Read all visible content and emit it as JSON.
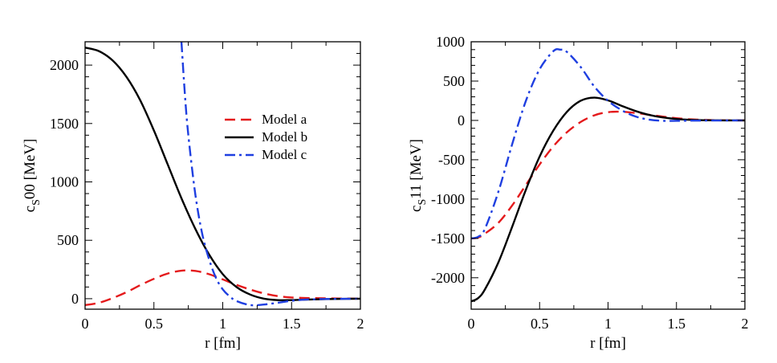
{
  "colors": {
    "model_a": "#e41a1c",
    "model_b": "#000000",
    "model_c": "#1f3fe0"
  },
  "chart_data": [
    {
      "type": "line",
      "xlabel": "r [fm]",
      "ylabel_main": "c",
      "ylabel_sub": "S",
      "ylabel_rest": "00 [MeV]",
      "xlim": [
        0,
        2
      ],
      "ylim": [
        -90,
        2200
      ],
      "xticks": [
        0,
        0.5,
        1,
        1.5,
        2
      ],
      "xtick_labels": [
        "0",
        "0.5",
        "1",
        "1.5",
        "2"
      ],
      "yticks": [
        0,
        500,
        1000,
        1500,
        2000
      ],
      "ytick_labels": [
        "0",
        "500",
        "1000",
        "1500",
        "2000"
      ],
      "legend": {
        "placement": "center-right",
        "entries": [
          "Model a",
          "Model b",
          "Model c"
        ]
      },
      "series": [
        {
          "name": "Model a",
          "style": "dashed",
          "x": [
            0,
            0.1,
            0.2,
            0.3,
            0.4,
            0.5,
            0.6,
            0.7,
            0.8,
            0.9,
            1.0,
            1.1,
            1.2,
            1.3,
            1.4,
            1.5,
            1.6,
            1.7,
            1.8,
            1.9,
            2.0
          ],
          "y": [
            -55,
            -35,
            5,
            55,
            115,
            170,
            215,
            240,
            238,
            210,
            165,
            118,
            78,
            45,
            22,
            10,
            6,
            4,
            2,
            1,
            0
          ]
        },
        {
          "name": "Model b",
          "style": "solid",
          "x": [
            0,
            0.1,
            0.2,
            0.3,
            0.4,
            0.5,
            0.6,
            0.7,
            0.8,
            0.9,
            1.0,
            1.1,
            1.2,
            1.3,
            1.4,
            1.5,
            1.6,
            1.7,
            1.8,
            1.9,
            2.0
          ],
          "y": [
            2150,
            2120,
            2040,
            1900,
            1700,
            1440,
            1150,
            860,
            600,
            380,
            210,
            100,
            35,
            0,
            -12,
            -12,
            -8,
            -5,
            -3,
            -1,
            0
          ]
        },
        {
          "name": "Model c",
          "style": "dash-dot",
          "x": [
            0.7,
            0.725,
            0.75,
            0.8,
            0.85,
            0.9,
            0.95,
            1.0,
            1.05,
            1.1,
            1.2,
            1.3,
            1.4,
            1.5,
            1.6,
            1.7,
            1.8,
            1.9,
            2.0
          ],
          "y": [
            2200,
            1750,
            1400,
            900,
            560,
            340,
            180,
            80,
            20,
            -20,
            -55,
            -50,
            -35,
            -18,
            -8,
            -4,
            -2,
            -1,
            0
          ]
        }
      ]
    },
    {
      "type": "line",
      "xlabel": "r [fm]",
      "ylabel_main": "c",
      "ylabel_sub": "S",
      "ylabel_rest": "11 [MeV]",
      "xlim": [
        0,
        2
      ],
      "ylim": [
        -2400,
        1000
      ],
      "xticks": [
        0,
        0.5,
        1,
        1.5,
        2
      ],
      "xtick_labels": [
        "0",
        "0.5",
        "1",
        "1.5",
        "2"
      ],
      "yticks": [
        -2000,
        -1500,
        -1000,
        -500,
        0,
        500,
        1000
      ],
      "ytick_labels": [
        "-2000",
        "-1500",
        "-1000",
        "-500",
        "0",
        "500",
        "1000"
      ],
      "series": [
        {
          "name": "Model a",
          "style": "dashed",
          "x": [
            0,
            0.05,
            0.1,
            0.2,
            0.3,
            0.4,
            0.5,
            0.6,
            0.7,
            0.8,
            0.9,
            1.0,
            1.1,
            1.2,
            1.3,
            1.4,
            1.5,
            1.6,
            1.7,
            1.8,
            1.9,
            2.0
          ],
          "y": [
            -1500,
            -1490,
            -1440,
            -1300,
            -1080,
            -820,
            -560,
            -330,
            -150,
            -20,
            65,
            105,
            110,
            95,
            72,
            48,
            28,
            14,
            6,
            2,
            1,
            0
          ]
        },
        {
          "name": "Model b",
          "style": "solid",
          "x": [
            0,
            0.05,
            0.1,
            0.2,
            0.3,
            0.4,
            0.5,
            0.6,
            0.7,
            0.8,
            0.9,
            1.0,
            1.1,
            1.2,
            1.3,
            1.4,
            1.5,
            1.6,
            1.7,
            1.8,
            1.9,
            2.0
          ],
          "y": [
            -2300,
            -2260,
            -2150,
            -1800,
            -1350,
            -880,
            -460,
            -130,
            110,
            250,
            290,
            255,
            185,
            120,
            70,
            38,
            18,
            8,
            3,
            1,
            0,
            0
          ]
        },
        {
          "name": "Model c",
          "style": "dash-dot",
          "x": [
            0,
            0.05,
            0.1,
            0.2,
            0.3,
            0.4,
            0.5,
            0.6,
            0.65,
            0.7,
            0.8,
            0.9,
            1.0,
            1.1,
            1.2,
            1.3,
            1.4,
            1.5,
            1.6,
            1.8,
            2.0
          ],
          "y": [
            -1500,
            -1480,
            -1380,
            -900,
            -300,
            250,
            650,
            880,
            900,
            870,
            680,
            430,
            250,
            130,
            50,
            10,
            -5,
            -5,
            -3,
            -1,
            0
          ]
        }
      ]
    }
  ]
}
